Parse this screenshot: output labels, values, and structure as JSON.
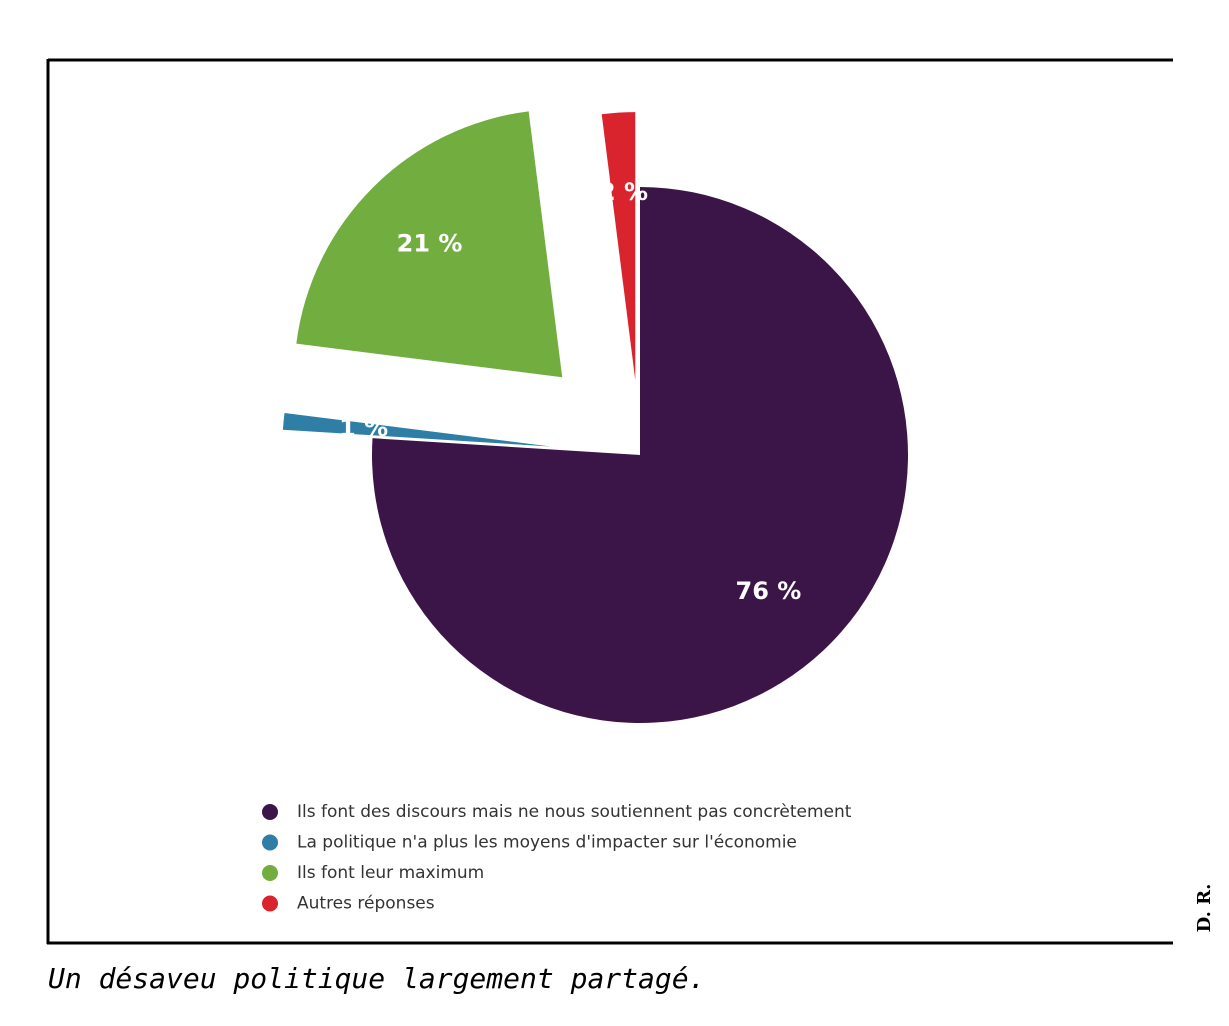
{
  "chart_data": {
    "type": "pie",
    "categories": [
      "Ils font des discours mais ne nous soutiennent pas concrètement",
      "La politique n'a plus les moyens d'impacter sur l'économie",
      "Ils font leur maximum",
      "Autres réponses"
    ],
    "values": [
      76,
      1,
      21,
      2
    ],
    "value_labels": [
      "76 %",
      "1 %",
      "21 %",
      "2 %"
    ],
    "colors": [
      "#3b1547",
      "#2e7ea6",
      "#72ad3f",
      "#d9232d"
    ]
  },
  "caption": "Un désaveu politique largement partagé.",
  "credit": "D. R."
}
